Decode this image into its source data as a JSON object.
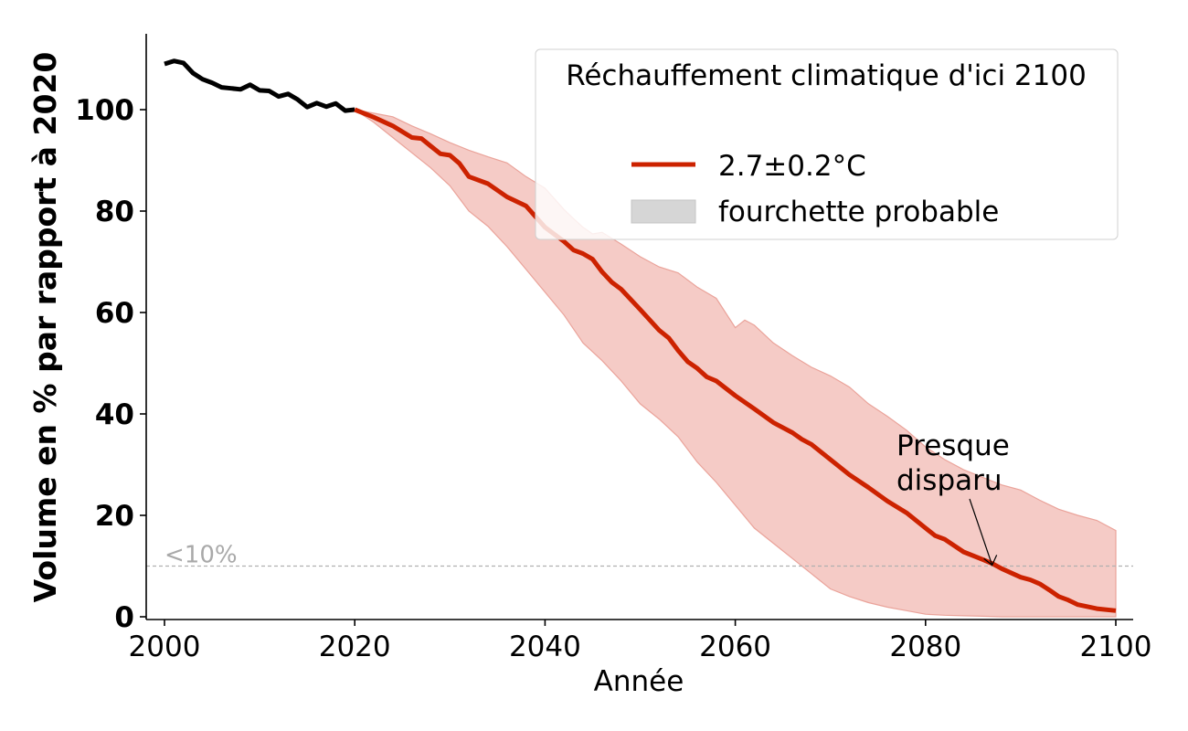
{
  "chart_data": {
    "type": "line",
    "title": "",
    "xlabel": "Année",
    "ylabel": "Volume en % par rapport à 2020",
    "xlim": [
      1998,
      2102
    ],
    "ylim": [
      -1,
      115
    ],
    "xticks": [
      2000,
      2020,
      2040,
      2060,
      2080,
      2100
    ],
    "yticks": [
      0,
      20,
      40,
      60,
      80,
      100
    ],
    "colors": {
      "historical": "#000000",
      "projection": "#cc2200",
      "band": "#f5cbc6",
      "band_edge": "#eaa39a",
      "threshold": "#b0b0b0",
      "legend_patch": "#d6d6d6"
    },
    "historical": {
      "x": [
        2000,
        2001,
        2002,
        2003,
        2004,
        2005,
        2006,
        2007,
        2008,
        2009,
        2010,
        2011,
        2012,
        2013,
        2014,
        2015,
        2016,
        2017,
        2018,
        2019,
        2020
      ],
      "y": [
        109,
        109.6,
        109.2,
        107.2,
        106,
        105.3,
        104.4,
        104.2,
        104,
        104.9,
        103.8,
        103.7,
        102.6,
        103.1,
        102,
        100.5,
        101.3,
        100.6,
        101.2,
        99.8,
        100
      ]
    },
    "projection": {
      "name": "2.7±0.2°C",
      "x": [
        2020,
        2022,
        2024,
        2026,
        2027,
        2028,
        2029,
        2030,
        2031,
        2032,
        2034,
        2036,
        2038,
        2040,
        2042,
        2043,
        2044,
        2045,
        2046,
        2047,
        2048,
        2050,
        2052,
        2053,
        2054,
        2055,
        2056,
        2057,
        2058,
        2060,
        2062,
        2064,
        2066,
        2067,
        2068,
        2070,
        2072,
        2074,
        2076,
        2078,
        2080,
        2081,
        2082,
        2084,
        2086,
        2087,
        2088,
        2090,
        2091,
        2092,
        2093,
        2094,
        2095,
        2096,
        2098,
        2100
      ],
      "y": [
        100,
        98.5,
        96.8,
        94.5,
        94.3,
        92.8,
        91.3,
        91.0,
        89.4,
        86.8,
        85.4,
        82.8,
        81.0,
        76.8,
        74.0,
        72.3,
        71.6,
        70.5,
        68.0,
        66.0,
        64.6,
        60.6,
        56.5,
        55.0,
        52.5,
        50.3,
        49.0,
        47.3,
        46.5,
        43.6,
        41.0,
        38.3,
        36.3,
        35.0,
        34.0,
        31.0,
        28.0,
        25.5,
        22.8,
        20.5,
        17.5,
        16.0,
        15.3,
        12.8,
        11.3,
        10.5,
        9.5,
        7.8,
        7.3,
        6.5,
        5.3,
        4.0,
        3.3,
        2.4,
        1.6,
        1.2
      ]
    },
    "band_upper": {
      "x": [
        2020,
        2022,
        2024,
        2026,
        2028,
        2030,
        2032,
        2034,
        2036,
        2038,
        2040,
        2042,
        2043,
        2044,
        2045,
        2046,
        2048,
        2050,
        2052,
        2054,
        2056,
        2058,
        2060,
        2061,
        2062,
        2064,
        2066,
        2068,
        2070,
        2072,
        2074,
        2076,
        2078,
        2080,
        2082,
        2084,
        2086,
        2088,
        2090,
        2092,
        2094,
        2096,
        2098,
        2100
      ],
      "y": [
        100,
        99.3,
        98.6,
        96.8,
        95.2,
        93.5,
        92.0,
        90.7,
        89.5,
        86.8,
        84.5,
        80.3,
        78.5,
        76.8,
        75.5,
        75.8,
        73.5,
        71.0,
        69.0,
        67.8,
        65.0,
        62.8,
        57.0,
        58.5,
        57.5,
        54.0,
        51.5,
        49.2,
        47.5,
        45.3,
        42.0,
        39.5,
        36.8,
        33.5,
        31.0,
        29.0,
        27.5,
        26.0,
        25.0,
        23.0,
        21.2,
        20.0,
        19.0,
        17.0
      ]
    },
    "band_lower": {
      "x": [
        2020,
        2022,
        2024,
        2026,
        2028,
        2030,
        2032,
        2034,
        2036,
        2038,
        2040,
        2042,
        2044,
        2046,
        2048,
        2050,
        2052,
        2054,
        2056,
        2058,
        2060,
        2062,
        2064,
        2066,
        2068,
        2070,
        2072,
        2074,
        2076,
        2078,
        2080,
        2082,
        2084,
        2086,
        2088,
        2090,
        2092,
        2094,
        2096,
        2098,
        2100
      ],
      "y": [
        100,
        97.5,
        94.5,
        91.5,
        88.5,
        85.0,
        80.0,
        77.0,
        73.0,
        68.5,
        64.0,
        59.5,
        54.0,
        50.5,
        46.5,
        42.0,
        39.0,
        35.5,
        30.5,
        26.5,
        22.0,
        17.5,
        14.5,
        11.5,
        8.5,
        5.5,
        4.0,
        2.8,
        1.9,
        1.2,
        0.5,
        0.3,
        0.2,
        0.1,
        0,
        0,
        0,
        0,
        0,
        0,
        0
      ]
    },
    "threshold": {
      "y": 10,
      "label": "<10%"
    },
    "annotation": {
      "line1": "Presque",
      "line2": "disparu",
      "target_x": 2087,
      "target_y": 10.2
    },
    "legend": {
      "title": "Réchauffement climatique d'ici 2100",
      "entries": [
        "2.7±0.2°C",
        "fourchette probable"
      ],
      "location": "top-right"
    }
  }
}
